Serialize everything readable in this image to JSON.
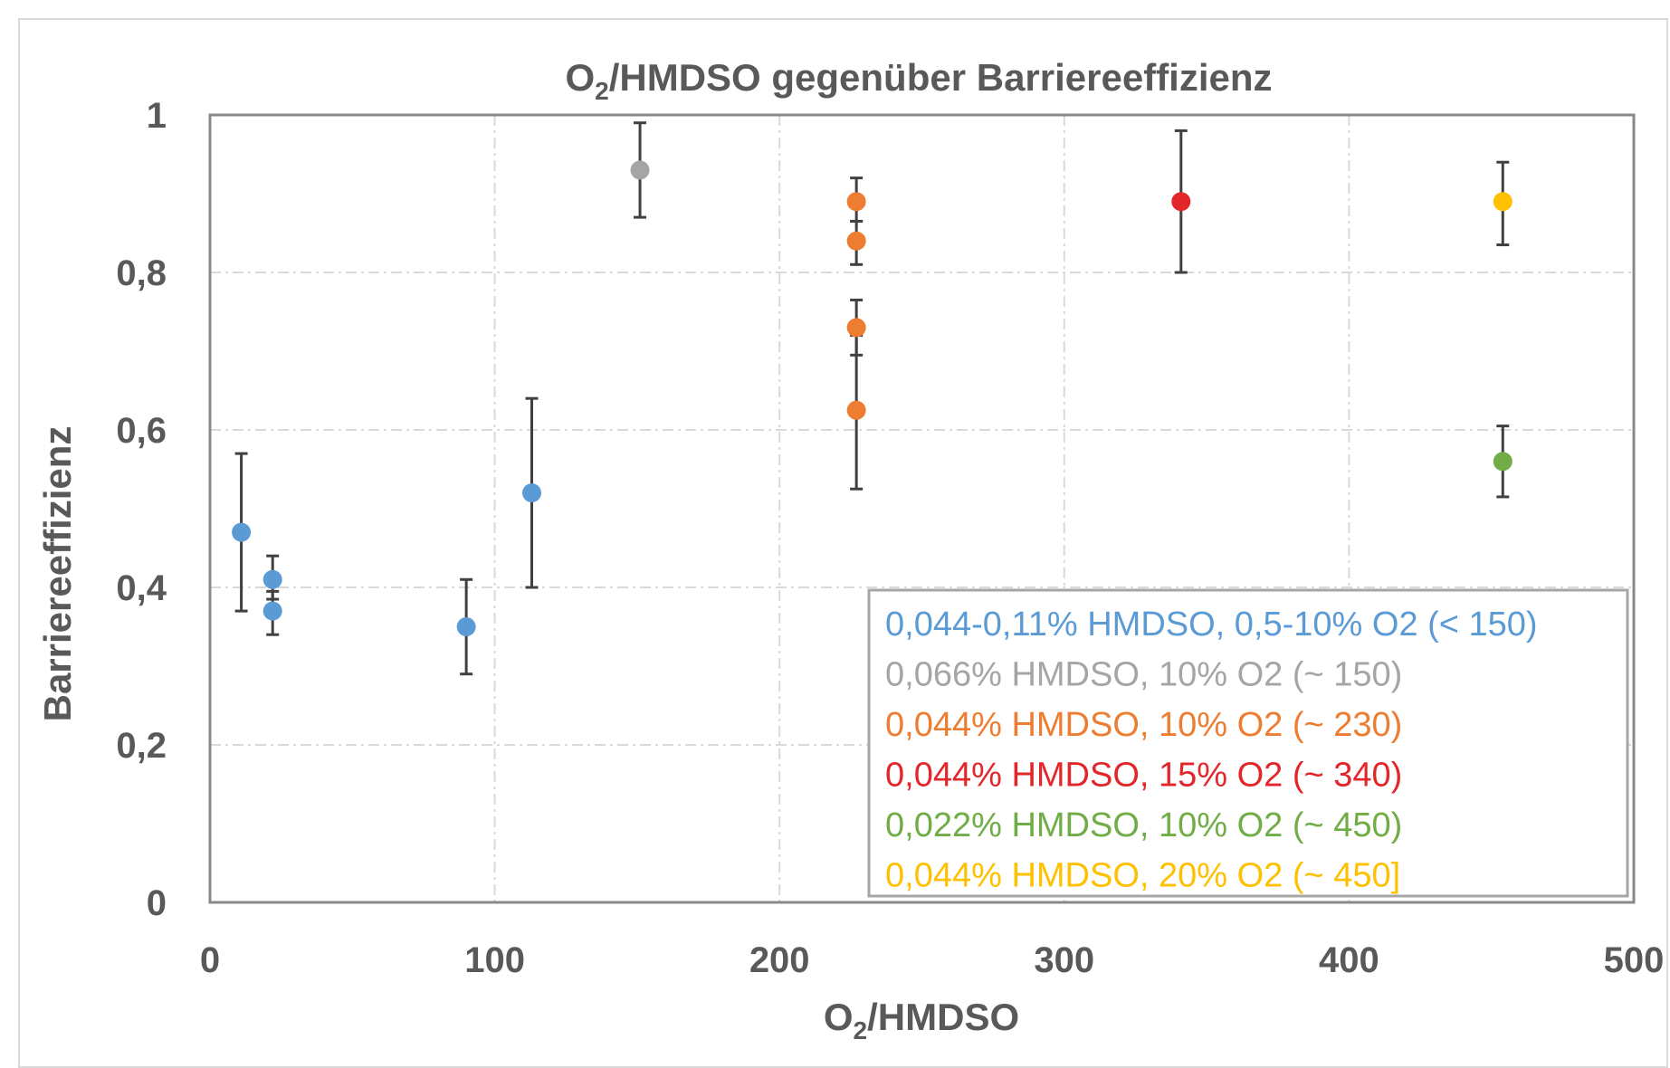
{
  "chart_data": {
    "type": "scatter",
    "title_main": "O",
    "title_sub": "2",
    "title_rest": "/HMDSO gegenüber Barriereeffizienz",
    "xlabel_main": "O",
    "xlabel_sub": "2",
    "xlabel_rest": "/HMDSO",
    "ylabel": "Barriereeffizienz",
    "xlim": [
      0,
      500
    ],
    "ylim": [
      0,
      1
    ],
    "xticks": [
      0,
      100,
      200,
      300,
      400,
      500
    ],
    "xtick_labels": [
      "0",
      "100",
      "200",
      "300",
      "400",
      "500"
    ],
    "yticks": [
      0,
      0.2,
      0.4,
      0.6,
      0.8,
      1
    ],
    "ytick_labels": [
      "0",
      "0,2",
      "0,4",
      "0,6",
      "0,8",
      "1"
    ],
    "grid": true,
    "legend_position": "bottom-right",
    "series": [
      {
        "name": "0,044-0,11% HMDSO, 0,5-10% O2 (< 150)",
        "color": "#5b9bd5",
        "points": [
          {
            "x": 11,
            "y": 0.47,
            "err_low": 0.37,
            "err_high": 0.57
          },
          {
            "x": 22,
            "y": 0.41,
            "err_low": 0.385,
            "err_high": 0.44
          },
          {
            "x": 22,
            "y": 0.37,
            "err_low": 0.34,
            "err_high": 0.395
          },
          {
            "x": 90,
            "y": 0.35,
            "err_low": 0.29,
            "err_high": 0.41
          },
          {
            "x": 113,
            "y": 0.52,
            "err_low": 0.4,
            "err_high": 0.64
          }
        ]
      },
      {
        "name": "0,066% HMDSO, 10% O2 (~ 150)",
        "color": "#a5a5a5",
        "points": [
          {
            "x": 151,
            "y": 0.93,
            "err_low": 0.87,
            "err_high": 0.99
          }
        ]
      },
      {
        "name": "0,044% HMDSO, 10% O2 (~ 230)",
        "color": "#ed7d31",
        "points": [
          {
            "x": 227,
            "y": 0.89,
            "err_low": 0.865,
            "err_high": 0.92
          },
          {
            "x": 227,
            "y": 0.84,
            "err_low": 0.81,
            "err_high": 0.865
          },
          {
            "x": 227,
            "y": 0.73,
            "err_low": 0.695,
            "err_high": 0.765
          },
          {
            "x": 227,
            "y": 0.625,
            "err_low": 0.525,
            "err_high": 0.72
          }
        ]
      },
      {
        "name": "0,044% HMDSO, 15% O2 (~ 340)",
        "color": "#e3262a",
        "points": [
          {
            "x": 341,
            "y": 0.89,
            "err_low": 0.8,
            "err_high": 0.98
          }
        ]
      },
      {
        "name": "0,022% HMDSO, 10% O2 (~ 450)",
        "color": "#70ad47",
        "points": [
          {
            "x": 454,
            "y": 0.56,
            "err_low": 0.515,
            "err_high": 0.605
          }
        ]
      },
      {
        "name": "0,044% HMDSO, 20% O2 (~ 450]",
        "color": "#ffc000",
        "points": [
          {
            "x": 454,
            "y": 0.89,
            "err_low": 0.835,
            "err_high": 0.94
          }
        ]
      }
    ]
  }
}
